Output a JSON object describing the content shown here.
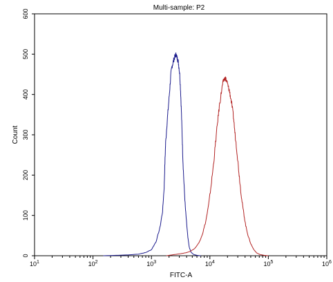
{
  "chart_data": {
    "type": "line",
    "title": "Multi-sample: P2",
    "xlabel": "FITC-A",
    "ylabel": "Count",
    "x_scale": "log",
    "xlim": [
      10,
      1000000
    ],
    "ylim": [
      0,
      600
    ],
    "x_ticks": [
      {
        "base": "10",
        "exp": "1",
        "value": 10
      },
      {
        "base": "10",
        "exp": "2",
        "value": 100
      },
      {
        "base": "10",
        "exp": "3",
        "value": 1000
      },
      {
        "base": "10",
        "exp": "4",
        "value": 10000
      },
      {
        "base": "10",
        "exp": "5",
        "value": 100000
      },
      {
        "base": "10",
        "exp": "6",
        "value": 1000000
      }
    ],
    "y_ticks": [
      "0",
      "100",
      "200",
      "300",
      "400",
      "500",
      "600"
    ],
    "grid": false,
    "series": [
      {
        "color": "#1a1a8c",
        "points": [
          [
            150,
            0
          ],
          [
            250,
            1
          ],
          [
            400,
            2
          ],
          [
            600,
            4
          ],
          [
            800,
            8
          ],
          [
            1000,
            15
          ],
          [
            1200,
            35
          ],
          [
            1400,
            70
          ],
          [
            1550,
            110
          ],
          [
            1650,
            170
          ],
          [
            1700,
            230
          ],
          [
            1750,
            280
          ],
          [
            1850,
            330
          ],
          [
            1950,
            370
          ],
          [
            2050,
            410
          ],
          [
            2150,
            450
          ],
          [
            2250,
            470
          ],
          [
            2350,
            480
          ],
          [
            2450,
            490
          ],
          [
            2550,
            495
          ],
          [
            2650,
            500
          ],
          [
            2750,
            490
          ],
          [
            2850,
            485
          ],
          [
            2950,
            470
          ],
          [
            3050,
            450
          ],
          [
            3150,
            410
          ],
          [
            3250,
            360
          ],
          [
            3350,
            300
          ],
          [
            3450,
            240
          ],
          [
            3600,
            180
          ],
          [
            3800,
            120
          ],
          [
            4000,
            80
          ],
          [
            4200,
            45
          ],
          [
            4450,
            20
          ],
          [
            4800,
            8
          ],
          [
            5300,
            3
          ],
          [
            6000,
            1
          ],
          [
            7000,
            0
          ]
        ]
      },
      {
        "color": "#b22222",
        "points": [
          [
            1800,
            0
          ],
          [
            2500,
            3
          ],
          [
            3500,
            6
          ],
          [
            4500,
            10
          ],
          [
            5500,
            18
          ],
          [
            6500,
            32
          ],
          [
            7500,
            55
          ],
          [
            8500,
            85
          ],
          [
            9500,
            125
          ],
          [
            10500,
            175
          ],
          [
            11500,
            225
          ],
          [
            12500,
            280
          ],
          [
            13500,
            330
          ],
          [
            14500,
            370
          ],
          [
            15500,
            400
          ],
          [
            16500,
            425
          ],
          [
            17500,
            438
          ],
          [
            18500,
            440
          ],
          [
            19500,
            432
          ],
          [
            20500,
            420
          ],
          [
            21500,
            410
          ],
          [
            22500,
            395
          ],
          [
            24000,
            370
          ],
          [
            25500,
            340
          ],
          [
            27000,
            300
          ],
          [
            29000,
            260
          ],
          [
            31000,
            215
          ],
          [
            33000,
            175
          ],
          [
            35000,
            140
          ],
          [
            38000,
            105
          ],
          [
            41000,
            75
          ],
          [
            45000,
            50
          ],
          [
            50000,
            30
          ],
          [
            56000,
            16
          ],
          [
            63000,
            7
          ],
          [
            72000,
            3
          ],
          [
            85000,
            1
          ],
          [
            100000,
            0
          ]
        ]
      }
    ]
  }
}
